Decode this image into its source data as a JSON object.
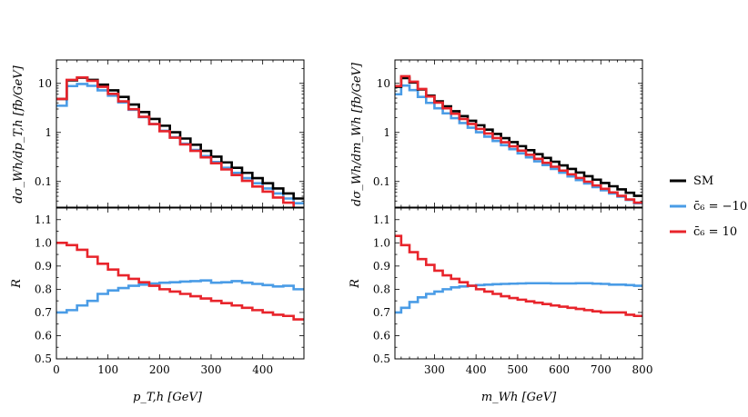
{
  "colors": {
    "sm": "#000000",
    "minus": "#4a9ce6",
    "plus": "#e8242b"
  },
  "legend": {
    "items": [
      {
        "key": "sm",
        "label": "SM"
      },
      {
        "key": "minus",
        "label": "c̄₆ = −10"
      },
      {
        "key": "plus",
        "label": "c̄₆ = 10"
      }
    ]
  },
  "chart_data": [
    {
      "type": "line",
      "panel": "top-left",
      "ylabel": "dσ_Wh/dp_T,h [fb/GeV]",
      "yscale": "log",
      "xlim": [
        0,
        480
      ],
      "ylim": [
        0.03,
        30
      ],
      "yticks": [
        {
          "v": 10,
          "l": "10"
        },
        {
          "v": 1,
          "l": "1"
        },
        {
          "v": 0.1,
          "l": "0.1"
        }
      ],
      "x_edges": [
        0,
        20,
        40,
        60,
        80,
        100,
        120,
        140,
        160,
        180,
        200,
        220,
        240,
        260,
        280,
        300,
        320,
        340,
        360,
        380,
        400,
        420,
        440,
        460,
        480
      ],
      "series": [
        {
          "key": "minus",
          "values": [
            3.5,
            8.8,
            9.7,
            8.9,
            7.2,
            5.6,
            4.1,
            2.9,
            2.05,
            1.48,
            1.08,
            0.8,
            0.59,
            0.44,
            0.33,
            0.25,
            0.19,
            0.15,
            0.117,
            0.092,
            0.072,
            0.057,
            0.045,
            0.036
          ]
        },
        {
          "key": "sm",
          "values": [
            4.8,
            11.5,
            13.0,
            11.8,
            9.4,
            7.2,
            5.3,
            3.7,
            2.6,
            1.88,
            1.37,
            1.01,
            0.75,
            0.56,
            0.42,
            0.32,
            0.245,
            0.19,
            0.15,
            0.117,
            0.092,
            0.072,
            0.057,
            0.045
          ]
        },
        {
          "key": "plus",
          "values": [
            4.8,
            11.8,
            13.2,
            11.3,
            8.5,
            6.1,
            4.3,
            2.98,
            2.08,
            1.48,
            1.06,
            0.78,
            0.57,
            0.42,
            0.31,
            0.235,
            0.176,
            0.135,
            0.103,
            0.079,
            0.062,
            0.047,
            0.037,
            0.029
          ]
        }
      ]
    },
    {
      "type": "line",
      "panel": "bottom-left",
      "xlabel": "p_T,h [GeV]",
      "ylabel": "R",
      "xlim": [
        0,
        480
      ],
      "ylim": [
        0.5,
        1.15
      ],
      "xticks": [
        0,
        100,
        200,
        300,
        400
      ],
      "yticks": [
        0.5,
        0.6,
        0.7,
        0.8,
        0.9,
        1.0,
        1.1
      ],
      "x_edges": [
        0,
        20,
        40,
        60,
        80,
        100,
        120,
        140,
        160,
        180,
        200,
        220,
        240,
        260,
        280,
        300,
        320,
        340,
        360,
        380,
        400,
        420,
        440,
        460,
        480
      ],
      "series": [
        {
          "key": "minus",
          "values": [
            0.7,
            0.71,
            0.73,
            0.75,
            0.78,
            0.795,
            0.805,
            0.815,
            0.82,
            0.825,
            0.828,
            0.83,
            0.833,
            0.835,
            0.838,
            0.828,
            0.83,
            0.835,
            0.828,
            0.823,
            0.818,
            0.812,
            0.815,
            0.8
          ]
        },
        {
          "key": "plus",
          "values": [
            1.0,
            0.99,
            0.97,
            0.94,
            0.91,
            0.885,
            0.86,
            0.845,
            0.83,
            0.815,
            0.8,
            0.79,
            0.78,
            0.77,
            0.76,
            0.75,
            0.74,
            0.73,
            0.72,
            0.71,
            0.7,
            0.69,
            0.685,
            0.67
          ]
        }
      ]
    },
    {
      "type": "line",
      "panel": "top-right",
      "ylabel": "dσ_Wh/dm_Wh [fb/GeV]",
      "yscale": "log",
      "xlim": [
        205,
        800
      ],
      "ylim": [
        0.03,
        30
      ],
      "yticks": [
        {
          "v": 10,
          "l": "10"
        },
        {
          "v": 1,
          "l": "1"
        },
        {
          "v": 0.1,
          "l": "0.1"
        }
      ],
      "x_edges": [
        205,
        220,
        240,
        260,
        280,
        300,
        320,
        340,
        360,
        380,
        400,
        420,
        440,
        460,
        480,
        500,
        520,
        540,
        560,
        580,
        600,
        620,
        640,
        660,
        680,
        700,
        720,
        740,
        760,
        780,
        800
      ],
      "series": [
        {
          "key": "minus",
          "values": [
            6.0,
            9.0,
            7.3,
            5.3,
            4.0,
            3.1,
            2.45,
            1.95,
            1.55,
            1.25,
            1.01,
            0.82,
            0.67,
            0.55,
            0.455,
            0.375,
            0.31,
            0.258,
            0.216,
            0.18,
            0.151,
            0.127,
            0.107,
            0.091,
            0.077,
            0.066,
            0.057,
            0.049,
            0.042,
            0.036
          ]
        },
        {
          "key": "sm",
          "values": [
            8.5,
            12.8,
            10.4,
            7.5,
            5.6,
            4.3,
            3.4,
            2.7,
            2.15,
            1.73,
            1.4,
            1.14,
            0.93,
            0.765,
            0.635,
            0.525,
            0.435,
            0.36,
            0.302,
            0.253,
            0.213,
            0.18,
            0.152,
            0.128,
            0.109,
            0.093,
            0.08,
            0.069,
            0.059,
            0.051
          ]
        },
        {
          "key": "plus",
          "values": [
            8.8,
            14.0,
            10.8,
            7.7,
            5.4,
            4.05,
            3.1,
            2.4,
            1.88,
            1.49,
            1.18,
            0.95,
            0.77,
            0.63,
            0.52,
            0.425,
            0.35,
            0.29,
            0.24,
            0.2,
            0.167,
            0.14,
            0.118,
            0.099,
            0.083,
            0.071,
            0.06,
            0.051,
            0.043,
            0.037
          ]
        }
      ]
    },
    {
      "type": "line",
      "panel": "bottom-right",
      "xlabel": "m_Wh [GeV]",
      "ylabel": "R",
      "xlim": [
        205,
        800
      ],
      "ylim": [
        0.5,
        1.15
      ],
      "xticks": [
        300,
        400,
        500,
        600,
        700,
        800
      ],
      "yticks": [
        0.5,
        0.6,
        0.7,
        0.8,
        0.9,
        1.0,
        1.1
      ],
      "x_edges": [
        205,
        220,
        240,
        260,
        280,
        300,
        320,
        340,
        360,
        380,
        400,
        420,
        440,
        460,
        480,
        500,
        520,
        540,
        560,
        580,
        600,
        620,
        640,
        660,
        680,
        700,
        720,
        740,
        760,
        780,
        800
      ],
      "series": [
        {
          "key": "minus",
          "values": [
            0.7,
            0.72,
            0.745,
            0.765,
            0.78,
            0.79,
            0.8,
            0.808,
            0.812,
            0.815,
            0.818,
            0.82,
            0.822,
            0.823,
            0.824,
            0.825,
            0.826,
            0.826,
            0.826,
            0.825,
            0.825,
            0.825,
            0.826,
            0.826,
            0.824,
            0.823,
            0.82,
            0.82,
            0.818,
            0.815
          ]
        },
        {
          "key": "plus",
          "values": [
            1.03,
            0.99,
            0.96,
            0.93,
            0.905,
            0.88,
            0.86,
            0.845,
            0.83,
            0.815,
            0.8,
            0.79,
            0.78,
            0.77,
            0.762,
            0.755,
            0.748,
            0.742,
            0.736,
            0.73,
            0.725,
            0.72,
            0.715,
            0.71,
            0.705,
            0.7,
            0.7,
            0.7,
            0.69,
            0.685
          ]
        }
      ]
    }
  ]
}
